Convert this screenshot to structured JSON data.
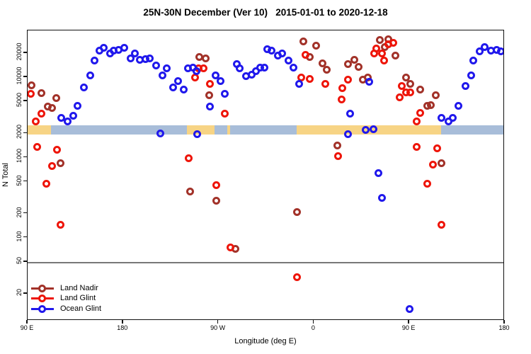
{
  "title": "25N-30N December (Ver 10)   2015-01-01 to 2020-12-18",
  "legend": {
    "items": [
      {
        "label": "Land Nadir",
        "color": "#A23229"
      },
      {
        "label": "Land Glint",
        "color": "#EE1509"
      },
      {
        "label": "Ocean Glint",
        "color": "#2018EC"
      }
    ]
  },
  "chart_data": {
    "type": "scatter",
    "title": "25N-30N December (Ver 10)   2015-01-01 to 2020-12-18",
    "xlabel": "Longitude (deg E)",
    "ylabel": "N Total",
    "x_axis": {
      "range": [
        90,
        540
      ],
      "ticks": [
        {
          "value": 90,
          "label": "90 E"
        },
        {
          "value": 180,
          "label": "180"
        },
        {
          "value": 270,
          "label": "90 W"
        },
        {
          "value": 360,
          "label": "0"
        },
        {
          "value": 450,
          "label": "90 E"
        },
        {
          "value": 540,
          "label": "180"
        }
      ]
    },
    "y_axis": {
      "scale": "log",
      "ticks": [
        20,
        50,
        100,
        200,
        500,
        1000,
        2000,
        5000,
        10000,
        20000
      ]
    },
    "reference_line_y": 50,
    "surface_band": {
      "value_top": 2520,
      "value_bottom": 1930,
      "land_color": "#F7D485",
      "ocean_color": "#A8BDD9",
      "segments": [
        {
          "from": 90,
          "to": 112,
          "surface": "land"
        },
        {
          "from": 112,
          "to": 240,
          "surface": "ocean"
        },
        {
          "from": 240,
          "to": 266,
          "surface": "land"
        },
        {
          "from": 266,
          "to": 278,
          "surface": "ocean"
        },
        {
          "from": 278,
          "to": 281,
          "surface": "land"
        },
        {
          "from": 281,
          "to": 344,
          "surface": "ocean"
        },
        {
          "from": 344,
          "to": 480,
          "surface": "land"
        },
        {
          "from": 480,
          "to": 540,
          "surface": "ocean"
        }
      ]
    },
    "series": [
      {
        "name": "Land Nadir",
        "color": "#A23229",
        "points": [
          [
            94,
            8000
          ],
          [
            103,
            6400
          ],
          [
            109,
            4300
          ],
          [
            113,
            4100
          ],
          [
            117,
            5500
          ],
          [
            121,
            840
          ],
          [
            243,
            380
          ],
          [
            252,
            18000
          ],
          [
            258,
            17000
          ],
          [
            261,
            6000
          ],
          [
            268,
            290
          ],
          [
            286,
            73
          ],
          [
            344,
            210
          ],
          [
            350,
            28000
          ],
          [
            356,
            18000
          ],
          [
            362,
            25000
          ],
          [
            368,
            15000
          ],
          [
            372,
            12500
          ],
          [
            382,
            1400
          ],
          [
            392,
            14500
          ],
          [
            398,
            16500
          ],
          [
            402,
            13500
          ],
          [
            406,
            9300
          ],
          [
            411,
            10000
          ],
          [
            422,
            29000
          ],
          [
            427,
            24000
          ],
          [
            430,
            29500
          ],
          [
            437,
            18500
          ],
          [
            447,
            9900
          ],
          [
            451,
            8300
          ],
          [
            460,
            7000
          ],
          [
            467,
            4400
          ],
          [
            470,
            4500
          ],
          [
            475,
            6000
          ],
          [
            480,
            840
          ]
        ]
      },
      {
        "name": "Land Glint",
        "color": "#EE1509",
        "points": [
          [
            93,
            6200
          ],
          [
            98,
            2800
          ],
          [
            99,
            1350
          ],
          [
            103,
            3500
          ],
          [
            108,
            470
          ],
          [
            113,
            780
          ],
          [
            118,
            1250
          ],
          [
            121,
            145
          ],
          [
            242,
            980
          ],
          [
            248,
            9900
          ],
          [
            251,
            12800
          ],
          [
            256,
            13000
          ],
          [
            262,
            8300
          ],
          [
            268,
            450
          ],
          [
            276,
            3500
          ],
          [
            281,
            75
          ],
          [
            344,
            32
          ],
          [
            348,
            9900
          ],
          [
            352,
            19000
          ],
          [
            356,
            9500
          ],
          [
            371,
            8300
          ],
          [
            383,
            1050
          ],
          [
            386,
            5300
          ],
          [
            387,
            7300
          ],
          [
            392,
            9300
          ],
          [
            417,
            20000
          ],
          [
            419,
            23000
          ],
          [
            424,
            20000
          ],
          [
            426,
            16300
          ],
          [
            430,
            26000
          ],
          [
            435,
            27000
          ],
          [
            441,
            5600
          ],
          [
            443,
            7800
          ],
          [
            447,
            6500
          ],
          [
            451,
            6500
          ],
          [
            457,
            2800
          ],
          [
            457,
            1350
          ],
          [
            460,
            3600
          ],
          [
            467,
            470
          ],
          [
            472,
            820
          ],
          [
            476,
            1300
          ],
          [
            480,
            145
          ]
        ]
      },
      {
        "name": "Ocean Glint",
        "color": "#2018EC",
        "points": [
          [
            122,
            3100
          ],
          [
            128,
            2800
          ],
          [
            133,
            3300
          ],
          [
            137,
            4400
          ],
          [
            143,
            7400
          ],
          [
            149,
            10600
          ],
          [
            153,
            16300
          ],
          [
            158,
            21300
          ],
          [
            162,
            23500
          ],
          [
            168,
            19800
          ],
          [
            171,
            21300
          ],
          [
            176,
            21800
          ],
          [
            181,
            23500
          ],
          [
            187,
            17300
          ],
          [
            191,
            19800
          ],
          [
            196,
            16600
          ],
          [
            201,
            16900
          ],
          [
            205,
            17300
          ],
          [
            211,
            14000
          ],
          [
            215,
            2000
          ],
          [
            217,
            10600
          ],
          [
            221,
            13000
          ],
          [
            227,
            7400
          ],
          [
            232,
            8900
          ],
          [
            237,
            7000
          ],
          [
            241,
            13000
          ],
          [
            246,
            13100
          ],
          [
            249,
            12000
          ],
          [
            250,
            1950
          ],
          [
            262,
            4300
          ],
          [
            267,
            10600
          ],
          [
            272,
            8900
          ],
          [
            276,
            6200
          ],
          [
            287,
            14500
          ],
          [
            290,
            13000
          ],
          [
            296,
            10400
          ],
          [
            301,
            10800
          ],
          [
            305,
            12000
          ],
          [
            309,
            13100
          ],
          [
            313,
            13300
          ],
          [
            316,
            22300
          ],
          [
            320,
            21300
          ],
          [
            326,
            18500
          ],
          [
            330,
            19800
          ],
          [
            336,
            16300
          ],
          [
            341,
            13100
          ],
          [
            346,
            8300
          ],
          [
            392,
            1950
          ],
          [
            394,
            3500
          ],
          [
            409,
            2200
          ],
          [
            412,
            8800
          ],
          [
            416,
            2250
          ],
          [
            421,
            640
          ],
          [
            424,
            315
          ],
          [
            450,
            13
          ],
          [
            480,
            3100
          ],
          [
            487,
            2800
          ],
          [
            491,
            3100
          ],
          [
            496,
            4400
          ],
          [
            503,
            7800
          ],
          [
            508,
            10600
          ],
          [
            510,
            16300
          ],
          [
            516,
            21000
          ],
          [
            521,
            24000
          ],
          [
            527,
            21300
          ],
          [
            532,
            21800
          ],
          [
            536,
            21000
          ]
        ]
      }
    ]
  }
}
